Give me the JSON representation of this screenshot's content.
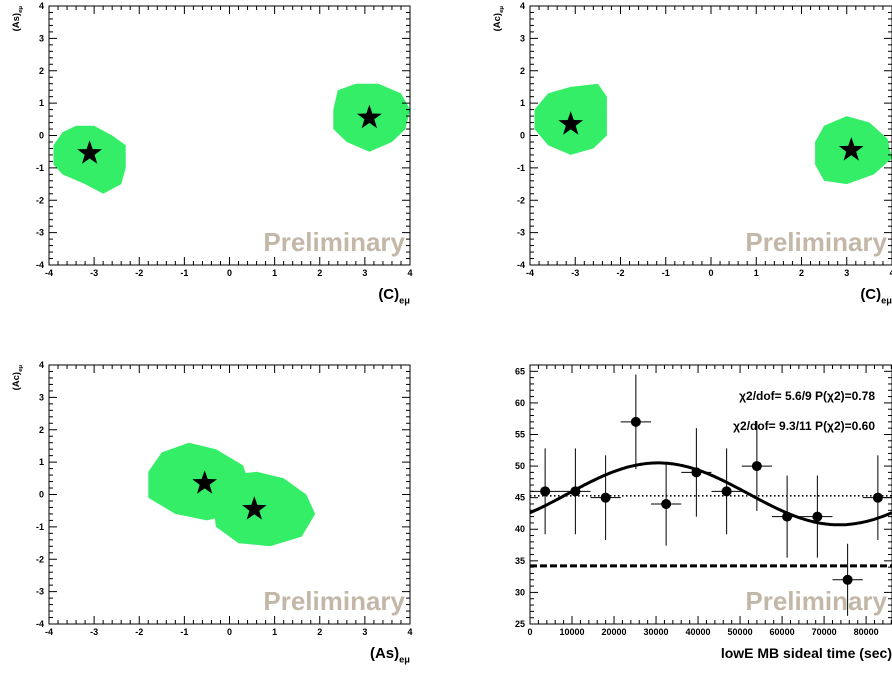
{
  "chart_data": [
    {
      "type": "scatter",
      "panel": "top-left",
      "xlabel": "(C)eμ",
      "ylabel": "(As)eμ",
      "xlim": [
        -4,
        4
      ],
      "ylim": [
        -4,
        4
      ],
      "x_ticks": [
        -4,
        -3,
        -2,
        -1,
        0,
        1,
        2,
        3,
        4
      ],
      "y_ticks": [
        -4,
        -3,
        -2,
        -1,
        0,
        1,
        2,
        3,
        4
      ],
      "watermark": "Preliminary",
      "points": [
        {
          "x": -3.1,
          "y": -0.55
        },
        {
          "x": 3.1,
          "y": 0.55
        }
      ],
      "regions": [
        {
          "center": [
            -3.1,
            -0.55
          ],
          "polygon": [
            [
              -3.9,
              -0.3
            ],
            [
              -3.7,
              0.1
            ],
            [
              -3.4,
              0.3
            ],
            [
              -3.0,
              0.3
            ],
            [
              -2.6,
              0.0
            ],
            [
              -2.3,
              -0.3
            ],
            [
              -2.3,
              -1.0
            ],
            [
              -2.4,
              -1.5
            ],
            [
              -2.8,
              -1.8
            ],
            [
              -3.2,
              -1.5
            ],
            [
              -3.7,
              -1.2
            ],
            [
              -3.9,
              -0.9
            ]
          ]
        },
        {
          "center": [
            3.1,
            0.55
          ],
          "polygon": [
            [
              2.3,
              0.8
            ],
            [
              2.4,
              1.4
            ],
            [
              2.8,
              1.6
            ],
            [
              3.3,
              1.6
            ],
            [
              3.8,
              1.3
            ],
            [
              4.0,
              0.8
            ],
            [
              3.9,
              0.2
            ],
            [
              3.6,
              -0.2
            ],
            [
              3.1,
              -0.5
            ],
            [
              2.6,
              -0.2
            ],
            [
              2.3,
              0.2
            ]
          ]
        }
      ]
    },
    {
      "type": "scatter",
      "panel": "top-right",
      "xlabel": "(C)eμ",
      "ylabel": "(Ac)eμ",
      "xlim": [
        -4,
        4
      ],
      "ylim": [
        -4,
        4
      ],
      "x_ticks": [
        -4,
        -3,
        -2,
        -1,
        0,
        1,
        2,
        3,
        4
      ],
      "y_ticks": [
        -4,
        -3,
        -2,
        -1,
        0,
        1,
        2,
        3,
        4
      ],
      "watermark": "Preliminary",
      "points": [
        {
          "x": -3.1,
          "y": 0.35
        },
        {
          "x": 3.1,
          "y": -0.45
        }
      ],
      "regions": [
        {
          "center": [
            -3.1,
            0.35
          ],
          "polygon": [
            [
              -3.9,
              0.8
            ],
            [
              -3.6,
              1.3
            ],
            [
              -3.1,
              1.5
            ],
            [
              -2.5,
              1.6
            ],
            [
              -2.3,
              1.2
            ],
            [
              -2.3,
              0.0
            ],
            [
              -2.6,
              -0.4
            ],
            [
              -3.1,
              -0.6
            ],
            [
              -3.6,
              -0.3
            ],
            [
              -3.9,
              0.2
            ]
          ]
        },
        {
          "center": [
            3.1,
            -0.45
          ],
          "polygon": [
            [
              2.3,
              -0.2
            ],
            [
              2.5,
              0.3
            ],
            [
              3.0,
              0.6
            ],
            [
              3.5,
              0.4
            ],
            [
              3.9,
              -0.1
            ],
            [
              4.0,
              -0.7
            ],
            [
              3.6,
              -1.2
            ],
            [
              3.0,
              -1.5
            ],
            [
              2.5,
              -1.4
            ],
            [
              2.3,
              -0.9
            ]
          ]
        }
      ]
    },
    {
      "type": "scatter",
      "panel": "bottom-left",
      "xlabel": "(As)eμ",
      "ylabel": "(Ac)eμ",
      "xlim": [
        -4,
        4
      ],
      "ylim": [
        -4,
        4
      ],
      "x_ticks": [
        -4,
        -3,
        -2,
        -1,
        0,
        1,
        2,
        3,
        4
      ],
      "y_ticks": [
        -4,
        -3,
        -2,
        -1,
        0,
        1,
        2,
        3,
        4
      ],
      "watermark": "Preliminary",
      "points": [
        {
          "x": -0.55,
          "y": 0.35
        },
        {
          "x": 0.55,
          "y": -0.45
        }
      ],
      "regions": [
        {
          "center": [
            -0.55,
            0.35
          ],
          "polygon": [
            [
              -1.8,
              0.7
            ],
            [
              -1.5,
              1.3
            ],
            [
              -0.9,
              1.6
            ],
            [
              -0.3,
              1.4
            ],
            [
              0.3,
              0.9
            ],
            [
              0.5,
              0.1
            ],
            [
              0.1,
              -0.6
            ],
            [
              -0.5,
              -0.8
            ],
            [
              -1.2,
              -0.6
            ],
            [
              -1.8,
              -0.1
            ]
          ]
        },
        {
          "center": [
            0.55,
            -0.45
          ],
          "polygon": [
            [
              -0.4,
              0.0
            ],
            [
              -0.1,
              0.6
            ],
            [
              0.6,
              0.7
            ],
            [
              1.2,
              0.5
            ],
            [
              1.7,
              0.0
            ],
            [
              1.9,
              -0.6
            ],
            [
              1.6,
              -1.3
            ],
            [
              0.9,
              -1.6
            ],
            [
              0.2,
              -1.5
            ],
            [
              -0.3,
              -1.0
            ]
          ]
        }
      ]
    },
    {
      "type": "scatter",
      "panel": "bottom-right",
      "xlabel": "lowE MB sideal time (sec)",
      "ylabel": "",
      "xlim": [
        0,
        86164
      ],
      "ylim": [
        25,
        66
      ],
      "x_ticks": [
        0,
        10000,
        20000,
        30000,
        40000,
        50000,
        60000,
        70000,
        80000
      ],
      "y_ticks": [
        25,
        30,
        35,
        40,
        45,
        50,
        55,
        60,
        65
      ],
      "watermark": "Preliminary",
      "points": [
        {
          "x": 3600,
          "y": 46,
          "xerr": 3600,
          "yerr": 6.8
        },
        {
          "x": 10800,
          "y": 46,
          "xerr": 3600,
          "yerr": 6.8
        },
        {
          "x": 18000,
          "y": 45,
          "xerr": 3600,
          "yerr": 6.7
        },
        {
          "x": 25200,
          "y": 57,
          "xerr": 3600,
          "yerr": 7.5
        },
        {
          "x": 32400,
          "y": 44,
          "xerr": 3600,
          "yerr": 6.6
        },
        {
          "x": 39600,
          "y": 49,
          "xerr": 3600,
          "yerr": 7.0
        },
        {
          "x": 46800,
          "y": 46,
          "xerr": 3600,
          "yerr": 6.8
        },
        {
          "x": 54000,
          "y": 50,
          "xerr": 3600,
          "yerr": 7.1
        },
        {
          "x": 61200,
          "y": 42,
          "xerr": 3600,
          "yerr": 6.5
        },
        {
          "x": 68400,
          "y": 42,
          "xerr": 3600,
          "yerr": 6.5
        },
        {
          "x": 75600,
          "y": 32,
          "xerr": 3600,
          "yerr": 5.7
        },
        {
          "x": 82800,
          "y": 45,
          "xerr": 3600,
          "yerr": 6.7
        }
      ],
      "fit_curve": {
        "mean": 45.6,
        "amplitude": 4.9,
        "period": 86164,
        "phase_peak_x": 30500
      },
      "dotted_line_y": 45.3,
      "dashed_line_y": 34.2,
      "annotations": [
        "χ2/dof= 5.6/9   P(χ2)=0.78",
        "χ2/dof= 9.3/11  P(χ2)=0.60"
      ]
    }
  ]
}
